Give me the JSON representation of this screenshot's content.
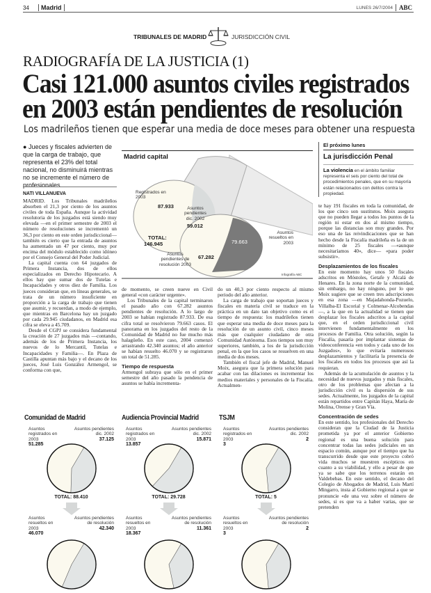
{
  "header": {
    "page_number": "34",
    "section": "Madrid",
    "date": "LUNES 26/7/2004",
    "logo": "ABC",
    "section_left": "TRIBUNALES DE MADRID",
    "section_right": "JURISDICCIÓN CIVIL",
    "scales_icon": "scales-of-justice-icon"
  },
  "watermark": "ABC",
  "article": {
    "kicker": "RADIOGRAFÍA DE LA JUSTICIA (1)",
    "title_line1": "Casi 121.000 asuntos civiles registrados",
    "title_line2": "en 2003 están pendientes de resolución",
    "subtitle": "Los madrileños tienen que esperar una media de doce meses para obtener una respuesta",
    "lead": "Jueces y fiscales advierten de que la carga de trabajo, que representa el 23% del total nacional, no disminuirá mientras no se incremente el número de profesionales",
    "byline": "NATI VILLANUEVA",
    "col1": [
      "MADRID. Los Tribunales madrileños absorben el 21,3 por ciento de los asuntos civiles de toda España. Aunque la actividad resolutoria de los juzgados está siendo muy elevada —en el primer semestre de 2003 el número de resoluciones se incrementó un 36,3 por ciento en este orden jurisdiccional— también es cierto que la entrada de asuntos ha aumentado un 47 por ciento, muy por encima del módulo establecido como idóneo por el Consejo General del Poder Judicial.",
      "La capital cuenta con 64 juzgados de Primera Instancia, dos de ellos especializados en Derecho Hipotecario. A ellos hay que sumar dos de Tutelas e Incapacidades y otros diez de Familia. Los jueces consideran que, en líneas generales, se trata de un número insuficiente en proporción a la carga de trabajo que tienen que asumir, y recuerdan, a modo de ejemplo, que mientras en Barcelona hay un juzgado por cada 29.945 ciudadanos, en Madrid esa cifra se eleva a 45.709.",
      "Desde el CGPJ se considera fundamental la creación de 27 juzgados más —contando, además de los de Primera Instancia, los nuevos de lo Mercantil, Tutelas e Incapacidades y Familia—. En Plaza de Castilla apuntan más bajo y el decano de los jueces, José Luis González Armengol, se conforma con que,"
    ],
    "col2": [
      "de momento, se creen nueve en Civil general «con carácter urgente».",
      "Los Tribunales de la capital terminaron el pasado año con 67.282 asuntos pendientes de resolución. A lo largo de 2003 se habían registrado 87.933. De esa cifra total se resolvieron 79.663 casos. El panorama en los juzgados del resto de la Comunidad de Madrid no fue mucho más halagüeño. En este caso, 2004 comenzó arrastrando 42.340 asuntos; el año anterior se habían resuelto 46.070 y se registraron un total de 51.285."
    ],
    "subhead1": "Tiempo de respuesta",
    "col2b": "Armengol subraya que sólo en el primer semestre del año pasado la pendencia de asuntos se había incrementa-",
    "col3": [
      "do un 40,3 por ciento respecto al mismo periodo del año anterior.",
      "La carga de trabajo que soportan jueces y fiscales en materia civil se traduce en la práctica en un dato tan objetivo como es el tiempo de respuesta: los madrileños tienen que esperar una media de doce meses para la resolución de un asunto civil, cinco meses más que cualquier ciudadano de otra Comunidad Autónoma. Esos tiempos son muy superiores, también, a los de la jurisdicción penal, en la que los casos se resuelven en una media de dos meses.",
      "También el fiscal jefe de Madrid, Manuel Moix, asegura que la primera solución para acabar con las dilaciones es incrementar los medios materiales y personales de la Fiscalía. Actualmen-"
    ],
    "col4a": "te hay 191 fiscales en toda la comunidad, de los que cinco son sustitutos. Moix asegura que no pueden llegar a todos los puntos de la región ni estar en dos al mismo tiempo, porque las distancias son muy grandes. Por eso una de las reivindicaciones que se han hecho desde la Fiscalía madrileña es la de un mínimo de 25 fiscales —«aunque necesitaríamos 40», dice— «para poder subsistir».",
    "subhead2": "Desplazamientos de los fiscales",
    "col4b": [
      "En este momento hay unos 50 fiscales adscritos en Móstoles, Getafe y Alcalá de Henares. En la zona norte de la comunidad, sin embargo, no hay ninguno, por lo que Moix sugiere que se creen tres adscripciones en esa zona —en Majadahonda-Pozuelo, Villalba-El Escorial y Colmenar-Alcobendas—, a la que en la actualidad se tienen que desplazar los fiscales adscritos a la capital que, en el orden jurisdiccional civil intervienen fundamentalmente en los procesos de Familia. Otra solución, según la Fiscalía, pasaría por implantar sistemas de videoconferencia «en todos y cada uno de los Juzgados», lo que evitaría numerosos desplazamientos y facilitaría la presencia de los fiscales en todos los procesos que así la requieran.",
      "Además de la acumulación de asuntos y la necesidad de nuevos juzgados y más fiscales, otro de los problemas que afectan a la jurisdicción civil es la dispersión de sus sedes. Actualmente, los juzgados de la capital están repartidos entre Capitán Haya, María de Molina, Orense y Gran Vía."
    ],
    "subhead3": "Concentración de sedes",
    "col4c": "En este sentido, los profesionales del Derecho consideran que la Ciudad de la Justicia prometida ya por el anterior Gobierno regional es una buena solución para concentrar todas las sedes judiciales en un espacio común, aunque por el tiempo que ha transcurrido desde que este proyecto cobró vida muchos se muestren escépticos en cuanto a su viabilidad, y ello a pesar de que ya se sabe que los terrenos estarán en Valdebebas. En este sentido, el decano del Colegio de Abogados de Madrid, Luis Martí Mingarro, insta al Gobierno regional a que se pronuncie «de una vez sobre el número de sedes, si es que va a haber varias, que se pretenden"
  },
  "sidebar": {
    "label": "El próximo lunes",
    "title": "La jurisdicción Penal",
    "lead_bold": "La violencia",
    "text": " en el ámbito familiar representa el seis por ciento del total de procedimientos penales, que en su mayoría están relacionados con delitos contra la propiedad."
  },
  "graphic": {
    "title": "Madrid capital",
    "registered_label": "Registrados en 2003",
    "registered": "87.933",
    "pending_prev_label": "Asuntos pendientes dic. 2002",
    "pending_prev": "59.012",
    "total_label": "TOTAL:",
    "total": "146.945",
    "resolved_label": "Asuntos resueltos en 2003",
    "resolved": "79.663",
    "pending_label": "Asuntos pendientes de resolución 2003",
    "pending": "67.282",
    "credit": "Infografía ABC",
    "colors": {
      "light": "#fbf9ee",
      "gray": "#d9dcdc",
      "dark": "#7a7a7a"
    }
  },
  "panels": [
    {
      "title": "Comunidad de Madrid",
      "registered": "51.285",
      "pending_prev": "37.125",
      "total": "TOTAL: 88.410",
      "resolved": "46.070",
      "pending": "42.340"
    },
    {
      "title": "Audiencia Provincial Madrid",
      "registered": "13.857",
      "pending_prev": "15.871",
      "total": "TOTAL: 29.728",
      "resolved": "18.367",
      "pending": "11.361"
    },
    {
      "title": "TSJM",
      "registered": "3",
      "pending_prev": "2",
      "total": "TOTAL: 5",
      "resolved": "3",
      "pending": "2"
    }
  ],
  "panel_labels": {
    "registered": "Asuntos registrados en 2003",
    "pending_prev": "Asuntos pendientes dic. 2002",
    "resolved": "Asuntos resueltos en 2003",
    "pending": "Asuntos pendientes de resolución"
  }
}
